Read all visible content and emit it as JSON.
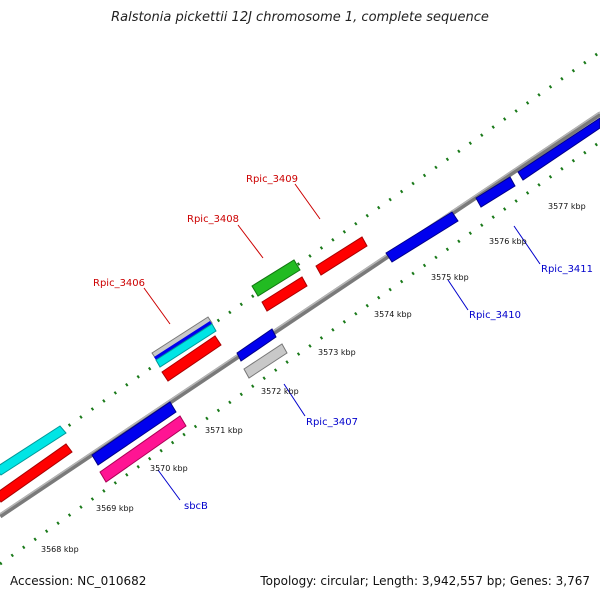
{
  "title": "Ralstonia pickettii 12J chromosome 1, complete sequence",
  "accession": "Accession: NC_010682",
  "summary": "Topology: circular; Length: 3,942,557 bp; Genes: 3,767",
  "colors": {
    "backbone": "#7a7a7a",
    "tick": "#1a7a1a",
    "forward_label": "#cc0000",
    "reverse_label": "#0000cc"
  },
  "kbp_labels": [
    "3568 kbp",
    "3569 kbp",
    "3570 kbp",
    "3571 kbp",
    "3572 kbp",
    "3573 kbp",
    "3574 kbp",
    "3575 kbp",
    "3576 kbp",
    "3577 kbp"
  ],
  "gene_labels": {
    "rpic_3406": "Rpic_3406",
    "rpic_3408": "Rpic_3408",
    "rpic_3409": "Rpic_3409",
    "rpic_3407": "Rpic_3407",
    "rpic_3410": "Rpic_3410",
    "rpic_3411": "Rpic_3411",
    "sbcb": "sbcB"
  },
  "features": [
    {
      "name": "cyan-feature-left",
      "color": "#00e5e5"
    },
    {
      "name": "red-feature-left",
      "color": "#ff0000"
    },
    {
      "name": "blue-feature-3570",
      "color": "#0000ee"
    },
    {
      "name": "pink-feature-sbcb",
      "color": "#ff1493"
    },
    {
      "name": "gray-feature-3406",
      "color": "#c8c8c8"
    },
    {
      "name": "cyan-feature-3406",
      "color": "#00e5e5"
    },
    {
      "name": "red-feature-3406",
      "color": "#ff0000"
    },
    {
      "name": "green-feature-3408",
      "color": "#22bb22"
    },
    {
      "name": "red-feature-3408",
      "color": "#ff0000"
    },
    {
      "name": "red-feature-3409",
      "color": "#ff0000"
    },
    {
      "name": "blue-feature-3407a",
      "color": "#0000ee"
    },
    {
      "name": "gray-feature-3407",
      "color": "#c8c8c8"
    },
    {
      "name": "blue-feature-3410",
      "color": "#0000ee"
    },
    {
      "name": "blue-feature-3411a",
      "color": "#0000ee"
    },
    {
      "name": "blue-feature-3411b",
      "color": "#0000ee"
    }
  ]
}
